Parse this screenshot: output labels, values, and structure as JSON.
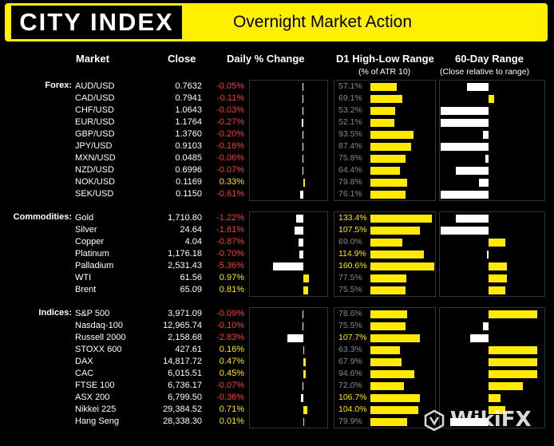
{
  "header": {
    "logo": "CITY INDEX",
    "title": "Overnight Market Action"
  },
  "columns": {
    "market": "Market",
    "close": "Close",
    "daily": "Daily % Change",
    "d1": "D1 High-Low Range",
    "d1_sub": "(% of ATR 10)",
    "day60": "60-Day Range",
    "day60_sub": "(Close relative to range)"
  },
  "colors": {
    "accent": "#fff000",
    "negative": "#ff3b30",
    "positive": "#ffea00",
    "muted": "#888888"
  },
  "sections": [
    {
      "label": "Forex:",
      "rows": [
        {
          "name": "AUD/USD",
          "close": "0.7632",
          "chg": "-0.05%",
          "chg_val": -0.05,
          "rng": "57.1%",
          "rng_val": 57.1,
          "d60": -0.45
        },
        {
          "name": "CAD/USD",
          "close": "0.7941",
          "chg": "-0.11%",
          "chg_val": -0.11,
          "rng": "69.1%",
          "rng_val": 69.1,
          "d60": 0.12
        },
        {
          "name": "CHF/USD",
          "close": "1.0643",
          "chg": "-0.03%",
          "chg_val": -0.03,
          "rng": "53.2%",
          "rng_val": 53.2,
          "d60": -0.98
        },
        {
          "name": "EUR/USD",
          "close": "1.1764",
          "chg": "-0.27%",
          "chg_val": -0.27,
          "rng": "52.1%",
          "rng_val": 52.1,
          "d60": -0.98
        },
        {
          "name": "GBP/USD",
          "close": "1.3760",
          "chg": "-0.20%",
          "chg_val": -0.2,
          "rng": "93.5%",
          "rng_val": 93.5,
          "d60": -0.12
        },
        {
          "name": "JPY/USD",
          "close": "0.9103",
          "chg": "-0.16%",
          "chg_val": -0.16,
          "rng": "87.4%",
          "rng_val": 87.4,
          "d60": -0.98
        },
        {
          "name": "MXN/USD",
          "close": "0.0485",
          "chg": "-0.06%",
          "chg_val": -0.06,
          "rng": "75.8%",
          "rng_val": 75.8,
          "d60": -0.06
        },
        {
          "name": "NZD/USD",
          "close": "0.6996",
          "chg": "-0.07%",
          "chg_val": -0.07,
          "rng": "64.4%",
          "rng_val": 64.4,
          "d60": -0.68
        },
        {
          "name": "NOK/USD",
          "close": "0.1169",
          "chg": "0.33%",
          "chg_val": 0.33,
          "rng": "79.8%",
          "rng_val": 79.8,
          "d60": -0.2
        },
        {
          "name": "SEK/USD",
          "close": "0.1150",
          "chg": "-0.61%",
          "chg_val": -0.61,
          "rng": "76.1%",
          "rng_val": 76.1,
          "d60": -0.98
        }
      ]
    },
    {
      "label": "Commodities:",
      "rows": [
        {
          "name": "Gold",
          "close": "1,710.80",
          "chg": "-1.22%",
          "chg_val": -1.22,
          "rng": "133.4%",
          "rng_val": 133.4,
          "d60": -0.68
        },
        {
          "name": "Silver",
          "close": "24.64",
          "chg": "-1.61%",
          "chg_val": -1.61,
          "rng": "107.5%",
          "rng_val": 107.5,
          "d60": -0.98
        },
        {
          "name": "Copper",
          "close": "4.04",
          "chg": "-0.87%",
          "chg_val": -0.87,
          "rng": "69.0%",
          "rng_val": 69.0,
          "d60": 0.35
        },
        {
          "name": "Platinum",
          "close": "1,176.18",
          "chg": "-0.70%",
          "chg_val": -0.7,
          "rng": "114.9%",
          "rng_val": 114.9,
          "d60": -0.03
        },
        {
          "name": "Palladium",
          "close": "2,531.43",
          "chg": "-5.36%",
          "chg_val": -5.36,
          "rng": "160.6%",
          "rng_val": 160.6,
          "d60": 0.38
        },
        {
          "name": "WTI",
          "close": "61.56",
          "chg": "0.97%",
          "chg_val": 0.97,
          "rng": "77.5%",
          "rng_val": 77.5,
          "d60": 0.38
        },
        {
          "name": "Brent",
          "close": "65.09",
          "chg": "0.81%",
          "chg_val": 0.81,
          "rng": "75.5%",
          "rng_val": 75.5,
          "d60": 0.35
        }
      ]
    },
    {
      "label": "Indices:",
      "rows": [
        {
          "name": "S&P 500",
          "close": "3,971.09",
          "chg": "-0.09%",
          "chg_val": -0.09,
          "rng": "78.6%",
          "rng_val": 78.6,
          "d60": 1.0
        },
        {
          "name": "Nasdaq-100",
          "close": "12,965.74",
          "chg": "-0.10%",
          "chg_val": -0.1,
          "rng": "75.5%",
          "rng_val": 75.5,
          "d60": -0.12
        },
        {
          "name": "Russell 2000",
          "close": "2,158.68",
          "chg": "-2.83%",
          "chg_val": -2.83,
          "rng": "107.7%",
          "rng_val": 107.7,
          "d60": -0.38
        },
        {
          "name": "STOXX 600",
          "close": "427.61",
          "chg": "0.16%",
          "chg_val": 0.16,
          "rng": "63.3%",
          "rng_val": 63.3,
          "d60": 1.0
        },
        {
          "name": "DAX",
          "close": "14,817.72",
          "chg": "0.47%",
          "chg_val": 0.47,
          "rng": "67.9%",
          "rng_val": 67.9,
          "d60": 1.0
        },
        {
          "name": "CAC",
          "close": "6,015.51",
          "chg": "0.45%",
          "chg_val": 0.45,
          "rng": "94.6%",
          "rng_val": 94.6,
          "d60": 1.0
        },
        {
          "name": "FTSE 100",
          "close": "6,736.17",
          "chg": "-0.07%",
          "chg_val": -0.07,
          "rng": "72.0%",
          "rng_val": 72.0,
          "d60": 0.7
        },
        {
          "name": "ASX 200",
          "close": "6,799.50",
          "chg": "-0.36%",
          "chg_val": -0.36,
          "rng": "106.7%",
          "rng_val": 106.7,
          "d60": 0.25
        },
        {
          "name": "Nikkei 225",
          "close": "29,384.52",
          "chg": "0.71%",
          "chg_val": 0.71,
          "rng": "104.0%",
          "rng_val": 104.0,
          "d60": 0.35
        },
        {
          "name": "Hang Seng",
          "close": "28,338.30",
          "chg": "0.01%",
          "chg_val": 0.01,
          "rng": "79.9%",
          "rng_val": 79.9,
          "d60": -0.78
        }
      ]
    }
  ],
  "watermark": "WikiFX"
}
